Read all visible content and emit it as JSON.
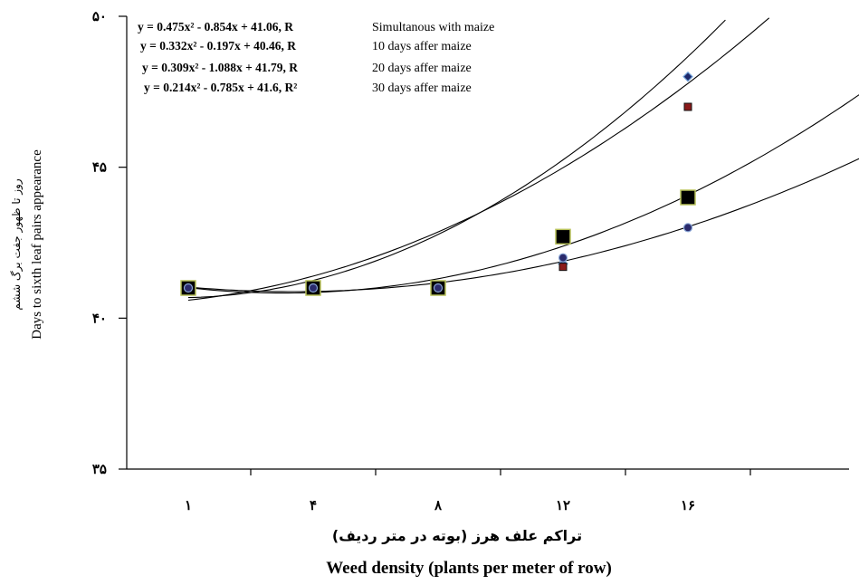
{
  "chart_data": {
    "type": "scatter",
    "title": "",
    "xlabel_fa": "تراکم علف هرز (بوته در متر ردیف)",
    "xlabel": "Weed density (plants per meter of row)",
    "ylabel_fa": "روز تا ظهور جفت برگ ششم",
    "ylabel": "Days to sixth leaf pairs appearance",
    "categories": [
      "۱",
      "۴",
      "۸",
      "۱۲",
      "۱۶"
    ],
    "ylim": [
      35,
      50
    ],
    "y_ticks": [
      35,
      40,
      45,
      50
    ],
    "y_tick_labels": [
      "۳۵",
      "۴۰",
      "۴۵",
      "۵۰"
    ],
    "grid": false,
    "legend_position": "top-left",
    "series": [
      {
        "name": "Simultanous with maize",
        "equation": "y = 0.475x² - 0.854x + 41.06, R",
        "coefficients": [
          0.475,
          -0.854,
          41.06
        ],
        "marker": "diamond",
        "color": "#1f2a6b",
        "values": [
          41.0,
          41.0,
          41.0,
          41.8,
          48.0
        ]
      },
      {
        "name": "10 days affer maize",
        "equation": "y = 0.332x² - 0.197x + 40.46, R",
        "coefficients": [
          0.332,
          -0.197,
          40.46
        ],
        "marker": "square-small",
        "color": "#8b1a1a",
        "values": [
          41.0,
          41.0,
          41.0,
          41.7,
          47.0
        ]
      },
      {
        "name": "20 days affer maize",
        "equation": "y = 0.309x² - 1.088x + 41.79, R",
        "coefficients": [
          0.309,
          -1.088,
          41.79
        ],
        "marker": "square-large",
        "color": "#000000",
        "values": [
          41.0,
          41.0,
          41.0,
          42.7,
          44.0
        ]
      },
      {
        "name": "30 days affer maize",
        "equation": "y = 0.214x² - 0.785x + 41.6, R²",
        "coefficients": [
          0.214,
          -0.785,
          41.6
        ],
        "marker": "circle",
        "color": "#2a2a6b",
        "values": [
          41.0,
          41.0,
          41.0,
          42.0,
          43.0
        ]
      }
    ]
  }
}
